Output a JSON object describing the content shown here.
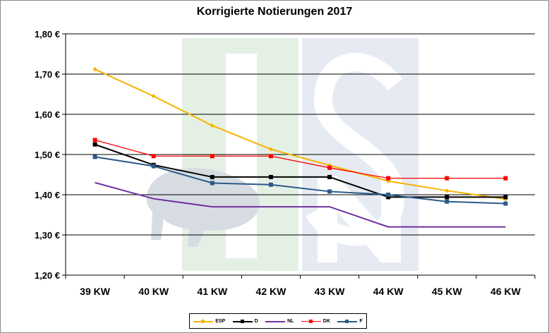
{
  "chart_data": {
    "type": "line",
    "title": "Korrigierte Notierungen 2017",
    "xlabel": "",
    "ylabel": "",
    "categories": [
      "39 KW",
      "40 KW",
      "41 KW",
      "42 KW",
      "43 KW",
      "44 KW",
      "45 KW",
      "46 KW"
    ],
    "ylim": [
      1.2,
      1.8
    ],
    "yticks": [
      "1,20 €",
      "1,30 €",
      "1,40 €",
      "1,50 €",
      "1,60 €",
      "1,70 €",
      "1,80 €"
    ],
    "grid": true,
    "legend_position": "bottom",
    "series": [
      {
        "name": "ESP",
        "color": "#f5b400",
        "marker": "diamond",
        "values": [
          1.712,
          1.645,
          1.572,
          1.513,
          1.473,
          1.434,
          1.41,
          1.389
        ]
      },
      {
        "name": "D",
        "color": "#000000",
        "marker": "square",
        "values": [
          1.525,
          1.474,
          1.444,
          1.444,
          1.444,
          1.394,
          1.394,
          1.394
        ]
      },
      {
        "name": "NL",
        "color": "#7030a0",
        "marker": "none",
        "values": [
          1.43,
          1.39,
          1.37,
          1.37,
          1.37,
          1.32,
          1.32,
          1.32
        ]
      },
      {
        "name": "DK",
        "color": "#ff0000",
        "marker": "square",
        "values": [
          1.536,
          1.496,
          1.496,
          1.496,
          1.467,
          1.441,
          1.441,
          1.441
        ]
      },
      {
        "name": "F",
        "color": "#2a5a8a",
        "marker": "square",
        "values": [
          1.494,
          1.471,
          1.429,
          1.425,
          1.408,
          1.4,
          1.383,
          1.378
        ]
      }
    ]
  }
}
